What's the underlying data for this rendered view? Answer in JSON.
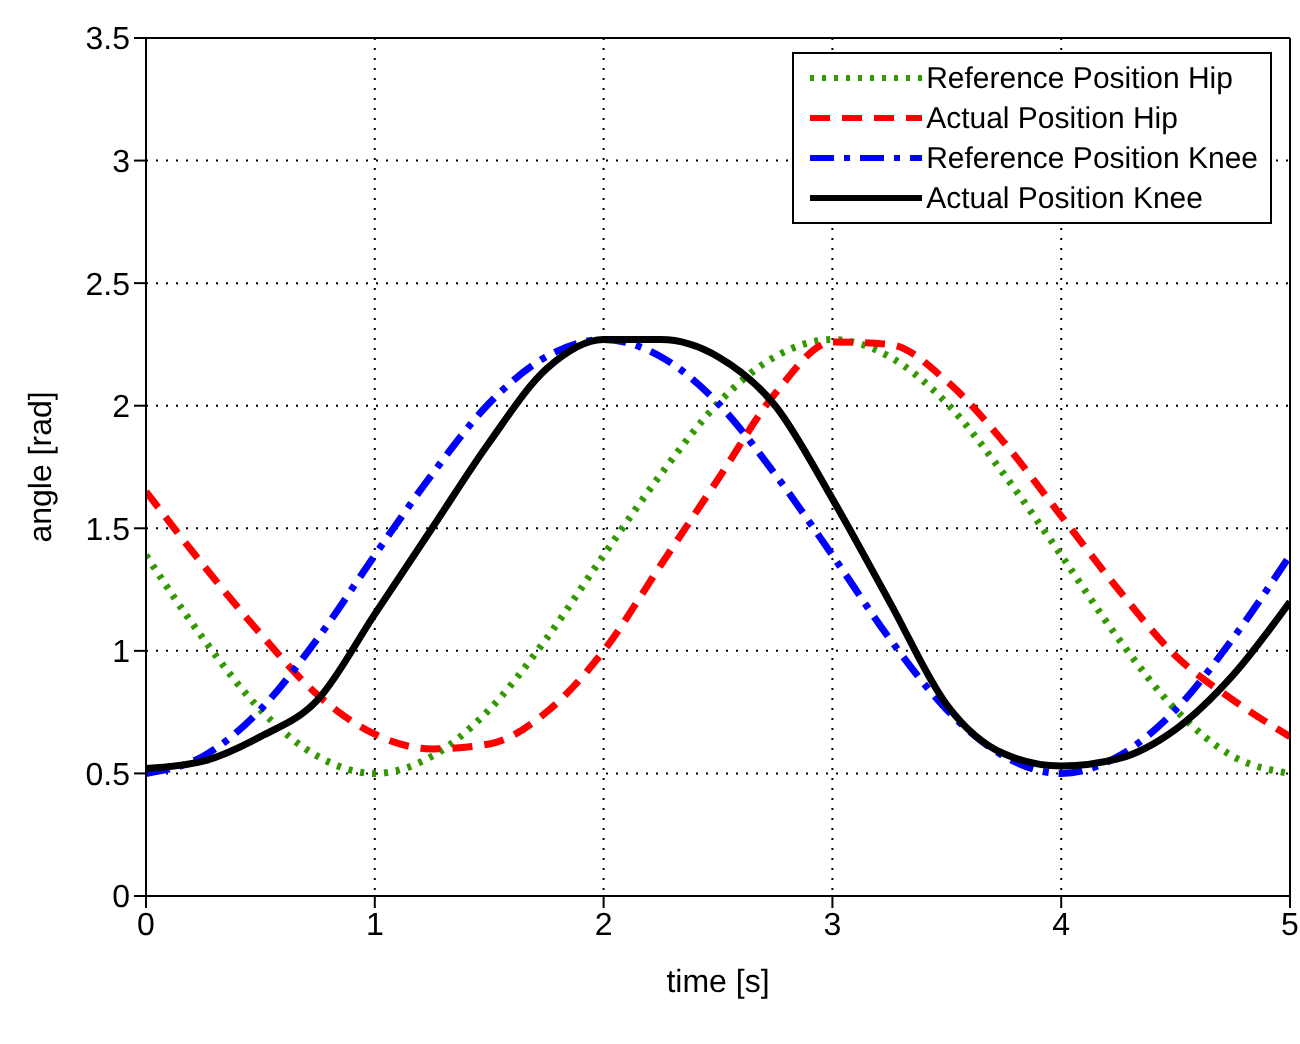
{
  "chart_data": {
    "type": "line",
    "xlabel": "time [s]",
    "ylabel": "angle [rad]",
    "x": [
      0,
      0.25,
      0.5,
      0.75,
      1,
      1.25,
      1.5,
      1.75,
      2,
      2.25,
      2.5,
      2.75,
      3,
      3.25,
      3.5,
      3.75,
      4,
      4.25,
      4.5,
      4.75,
      5
    ],
    "series": [
      {
        "name": "Reference Position Hip",
        "color": "#339900",
        "line_style": "dotted",
        "values": [
          1.39,
          1.05,
          0.76,
          0.57,
          0.5,
          0.57,
          0.76,
          1.05,
          1.39,
          1.72,
          2.01,
          2.2,
          2.27,
          2.2,
          2.01,
          1.72,
          1.39,
          1.05,
          0.76,
          0.57,
          0.5
        ]
      },
      {
        "name": "Actual Position Hip",
        "color": "#ff0000",
        "line_style": "dashed",
        "values": [
          1.65,
          1.35,
          1.07,
          0.82,
          0.66,
          0.6,
          0.62,
          0.75,
          1.0,
          1.35,
          1.7,
          2.05,
          2.26,
          2.25,
          2.1,
          1.85,
          1.55,
          1.25,
          0.98,
          0.8,
          0.65
        ]
      },
      {
        "name": "Reference Position Knee",
        "color": "#0000ff",
        "line_style": "dashdot",
        "values": [
          0.5,
          0.57,
          0.76,
          1.05,
          1.39,
          1.72,
          2.01,
          2.2,
          2.27,
          2.2,
          2.01,
          1.72,
          1.39,
          1.05,
          0.76,
          0.57,
          0.5,
          0.57,
          0.76,
          1.05,
          1.39
        ]
      },
      {
        "name": "Actual Position Knee",
        "color": "#000000",
        "line_style": "solid",
        "values": [
          0.52,
          0.55,
          0.65,
          0.8,
          1.15,
          1.5,
          1.85,
          2.15,
          2.27,
          2.27,
          2.2,
          2.0,
          1.62,
          1.2,
          0.78,
          0.58,
          0.53,
          0.56,
          0.68,
          0.9,
          1.2
        ]
      }
    ],
    "xlim": [
      0,
      5
    ],
    "xticks": [
      0,
      1,
      2,
      3,
      4,
      5
    ],
    "ylim": [
      0,
      3.5
    ],
    "yticks": [
      0,
      0.5,
      1,
      1.5,
      2,
      2.5,
      3,
      3.5
    ],
    "grid": true,
    "legend": "top right",
    "marker": "none"
  }
}
